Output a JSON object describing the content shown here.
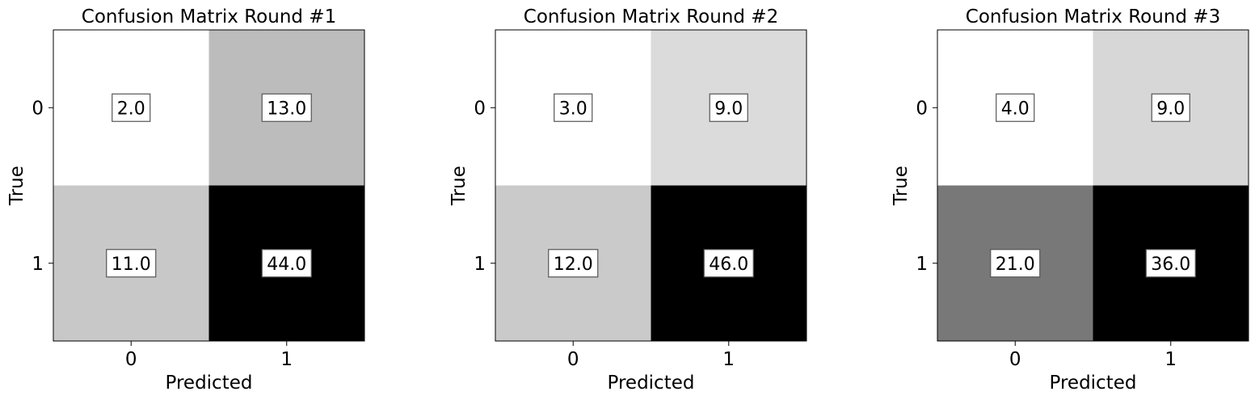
{
  "chart_data": [
    {
      "type": "heatmap",
      "title": "Confusion Matrix Round #1",
      "xlabel": "Predicted",
      "ylabel": "True",
      "x_ticks": [
        "0",
        "1"
      ],
      "y_ticks": [
        "0",
        "1"
      ],
      "values": [
        [
          2.0,
          13.0
        ],
        [
          11.0,
          44.0
        ]
      ],
      "cell_labels": [
        [
          "2.0",
          "13.0"
        ],
        [
          "11.0",
          "44.0"
        ]
      ],
      "colormap": "gray_r"
    },
    {
      "type": "heatmap",
      "title": "Confusion Matrix Round #2",
      "xlabel": "Predicted",
      "ylabel": "True",
      "x_ticks": [
        "0",
        "1"
      ],
      "y_ticks": [
        "0",
        "1"
      ],
      "values": [
        [
          3.0,
          9.0
        ],
        [
          12.0,
          46.0
        ]
      ],
      "cell_labels": [
        [
          "3.0",
          "9.0"
        ],
        [
          "12.0",
          "46.0"
        ]
      ],
      "colormap": "gray_r"
    },
    {
      "type": "heatmap",
      "title": "Confusion Matrix Round #3",
      "xlabel": "Predicted",
      "ylabel": "True",
      "x_ticks": [
        "0",
        "1"
      ],
      "y_ticks": [
        "0",
        "1"
      ],
      "values": [
        [
          4.0,
          9.0
        ],
        [
          21.0,
          36.0
        ]
      ],
      "cell_labels": [
        [
          "4.0",
          "9.0"
        ],
        [
          "21.0",
          "36.0"
        ]
      ],
      "colormap": "gray_r"
    }
  ]
}
